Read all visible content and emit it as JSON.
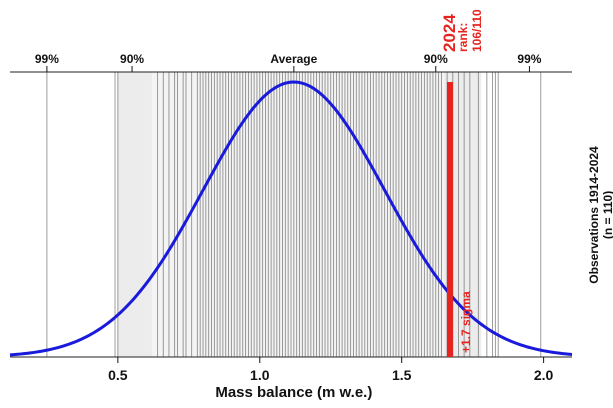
{
  "chart_data": {
    "type": "distribution",
    "xlabel": "Mass balance (m w.e.)",
    "ylabel_right_line1": "Observations 1914-2024",
    "ylabel_right_line2": "(n = 110)",
    "xlim": [
      0.12,
      2.1
    ],
    "x_ticks": [
      {
        "value": 0.5,
        "label": "0.5"
      },
      {
        "value": 1.0,
        "label": "1.0"
      },
      {
        "value": 1.5,
        "label": "1.5"
      },
      {
        "value": 2.0,
        "label": "2.0"
      }
    ],
    "top_ticks": [
      {
        "value": 0.25,
        "label": "99%"
      },
      {
        "value": 0.55,
        "label": "90%"
      },
      {
        "value": 1.12,
        "label": "Average"
      },
      {
        "value": 1.62,
        "label": "90%"
      },
      {
        "value": 1.95,
        "label": "99%"
      }
    ],
    "normal_curve": {
      "mean": 1.12,
      "sd": 0.32,
      "color": "#1a1adb"
    },
    "highlight": {
      "value": 1.67,
      "year_label": "2024",
      "rank_label": "rank:",
      "rank_value": "106/110",
      "sigma_label": "+1.7 sigma",
      "color": "#e8231f"
    },
    "shaded_band": {
      "from": 0.5,
      "to": 1.78,
      "inner_from": 0.62,
      "inner_to": 1.65,
      "color": "#ececec"
    },
    "observations": [
      0.25,
      0.49,
      0.5,
      0.64,
      0.66,
      0.68,
      0.7,
      0.71,
      0.73,
      0.74,
      0.76,
      0.78,
      0.79,
      0.8,
      0.81,
      0.82,
      0.83,
      0.84,
      0.85,
      0.86,
      0.87,
      0.88,
      0.89,
      0.9,
      0.91,
      0.92,
      0.93,
      0.94,
      0.95,
      0.96,
      0.97,
      0.98,
      0.99,
      1.0,
      1.01,
      1.02,
      1.03,
      1.04,
      1.05,
      1.06,
      1.07,
      1.08,
      1.09,
      1.1,
      1.11,
      1.12,
      1.13,
      1.14,
      1.15,
      1.16,
      1.17,
      1.18,
      1.19,
      1.2,
      1.21,
      1.22,
      1.23,
      1.24,
      1.25,
      1.26,
      1.27,
      1.28,
      1.29,
      1.3,
      1.31,
      1.32,
      1.33,
      1.34,
      1.35,
      1.36,
      1.37,
      1.38,
      1.39,
      1.4,
      1.41,
      1.42,
      1.43,
      1.44,
      1.45,
      1.46,
      1.47,
      1.48,
      1.49,
      1.5,
      1.51,
      1.52,
      1.53,
      1.54,
      1.55,
      1.56,
      1.57,
      1.58,
      1.59,
      1.6,
      1.61,
      1.62,
      1.63,
      1.64,
      1.66,
      1.68,
      1.7,
      1.72,
      1.74,
      1.77,
      1.8,
      1.82,
      1.83,
      1.84,
      1.99
    ]
  }
}
